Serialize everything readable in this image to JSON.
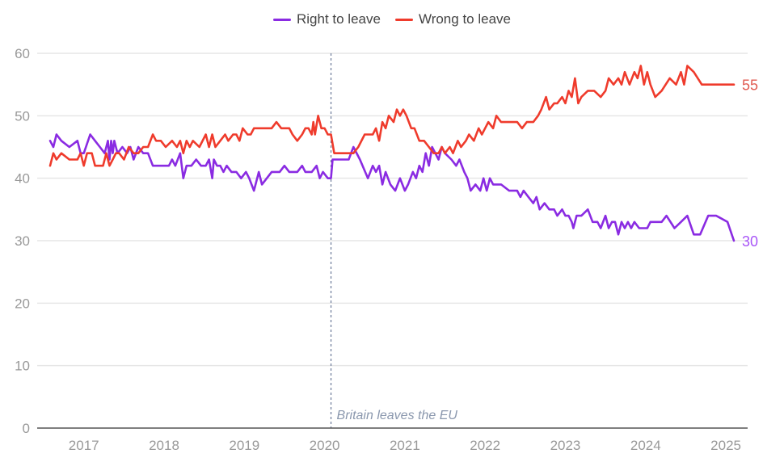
{
  "chart_data": {
    "type": "line",
    "title": "",
    "xlabel": "",
    "ylabel": "",
    "ylim": [
      0,
      60
    ],
    "xlim": [
      2016.58,
      2025.1
    ],
    "yticks": [
      0,
      10,
      20,
      30,
      40,
      50,
      60
    ],
    "xticks": [
      "2017",
      "2018",
      "2019",
      "2020",
      "2021",
      "2022",
      "2023",
      "2024",
      "2025"
    ],
    "xtick_values": [
      2017,
      2018,
      2019,
      2020,
      2021,
      2022,
      2023,
      2024,
      2025
    ],
    "grid": true,
    "legend": {
      "placement": "top-center",
      "entries": [
        "Right to leave",
        "Wrong to leave"
      ]
    },
    "annotation": {
      "label": "Britain leaves the EU",
      "x": 2020.08
    },
    "end_labels": {
      "Right to leave": "30",
      "Wrong to leave": "55"
    },
    "series": [
      {
        "name": "Right to leave",
        "color": "#8a2be2",
        "points": [
          [
            2016.58,
            46
          ],
          [
            2016.62,
            45
          ],
          [
            2016.66,
            47
          ],
          [
            2016.72,
            46
          ],
          [
            2016.82,
            45
          ],
          [
            2016.92,
            46
          ],
          [
            2016.96,
            44
          ],
          [
            2017.0,
            44
          ],
          [
            2017.08,
            47
          ],
          [
            2017.14,
            46
          ],
          [
            2017.2,
            45
          ],
          [
            2017.26,
            44
          ],
          [
            2017.3,
            46
          ],
          [
            2017.32,
            43
          ],
          [
            2017.34,
            46
          ],
          [
            2017.36,
            44
          ],
          [
            2017.38,
            46
          ],
          [
            2017.42,
            44
          ],
          [
            2017.48,
            45
          ],
          [
            2017.54,
            44
          ],
          [
            2017.58,
            45
          ],
          [
            2017.62,
            43
          ],
          [
            2017.68,
            45
          ],
          [
            2017.74,
            44
          ],
          [
            2017.8,
            44
          ],
          [
            2017.86,
            42
          ],
          [
            2017.96,
            42
          ],
          [
            2018.06,
            42
          ],
          [
            2018.1,
            43
          ],
          [
            2018.14,
            42
          ],
          [
            2018.2,
            44
          ],
          [
            2018.24,
            40
          ],
          [
            2018.28,
            42
          ],
          [
            2018.34,
            42
          ],
          [
            2018.4,
            43
          ],
          [
            2018.46,
            42
          ],
          [
            2018.52,
            42
          ],
          [
            2018.56,
            43
          ],
          [
            2018.6,
            40
          ],
          [
            2018.62,
            43
          ],
          [
            2018.66,
            42
          ],
          [
            2018.7,
            42
          ],
          [
            2018.74,
            41
          ],
          [
            2018.78,
            42
          ],
          [
            2018.84,
            41
          ],
          [
            2018.9,
            41
          ],
          [
            2018.96,
            40
          ],
          [
            2019.02,
            41
          ],
          [
            2019.06,
            40
          ],
          [
            2019.12,
            38
          ],
          [
            2019.18,
            41
          ],
          [
            2019.22,
            39
          ],
          [
            2019.28,
            40
          ],
          [
            2019.34,
            41
          ],
          [
            2019.44,
            41
          ],
          [
            2019.5,
            42
          ],
          [
            2019.56,
            41
          ],
          [
            2019.66,
            41
          ],
          [
            2019.72,
            42
          ],
          [
            2019.76,
            41
          ],
          [
            2019.84,
            41
          ],
          [
            2019.9,
            42
          ],
          [
            2019.94,
            40
          ],
          [
            2019.98,
            41
          ],
          [
            2020.04,
            40
          ],
          [
            2020.08,
            40
          ],
          [
            2020.1,
            43
          ],
          [
            2020.3,
            43
          ],
          [
            2020.36,
            45
          ],
          [
            2020.44,
            43
          ],
          [
            2020.54,
            40
          ],
          [
            2020.6,
            42
          ],
          [
            2020.64,
            41
          ],
          [
            2020.68,
            42
          ],
          [
            2020.72,
            39
          ],
          [
            2020.76,
            41
          ],
          [
            2020.82,
            39
          ],
          [
            2020.88,
            38
          ],
          [
            2020.94,
            40
          ],
          [
            2021.0,
            38
          ],
          [
            2021.04,
            39
          ],
          [
            2021.1,
            41
          ],
          [
            2021.14,
            40
          ],
          [
            2021.18,
            42
          ],
          [
            2021.22,
            41
          ],
          [
            2021.26,
            44
          ],
          [
            2021.3,
            42
          ],
          [
            2021.34,
            45
          ],
          [
            2021.38,
            44
          ],
          [
            2021.42,
            43
          ],
          [
            2021.46,
            45
          ],
          [
            2021.5,
            44
          ],
          [
            2021.58,
            43
          ],
          [
            2021.64,
            42
          ],
          [
            2021.68,
            43
          ],
          [
            2021.74,
            41
          ],
          [
            2021.78,
            40
          ],
          [
            2021.82,
            38
          ],
          [
            2021.88,
            39
          ],
          [
            2021.94,
            38
          ],
          [
            2021.98,
            40
          ],
          [
            2022.02,
            38
          ],
          [
            2022.06,
            40
          ],
          [
            2022.1,
            39
          ],
          [
            2022.2,
            39
          ],
          [
            2022.3,
            38
          ],
          [
            2022.4,
            38
          ],
          [
            2022.44,
            37
          ],
          [
            2022.48,
            38
          ],
          [
            2022.54,
            37
          ],
          [
            2022.6,
            36
          ],
          [
            2022.64,
            37
          ],
          [
            2022.68,
            35
          ],
          [
            2022.74,
            36
          ],
          [
            2022.8,
            35
          ],
          [
            2022.86,
            35
          ],
          [
            2022.9,
            34
          ],
          [
            2022.96,
            35
          ],
          [
            2023.0,
            34
          ],
          [
            2023.04,
            34
          ],
          [
            2023.08,
            33
          ],
          [
            2023.1,
            32
          ],
          [
            2023.14,
            34
          ],
          [
            2023.2,
            34
          ],
          [
            2023.28,
            35
          ],
          [
            2023.34,
            33
          ],
          [
            2023.4,
            33
          ],
          [
            2023.44,
            32
          ],
          [
            2023.5,
            34
          ],
          [
            2023.54,
            32
          ],
          [
            2023.58,
            33
          ],
          [
            2023.62,
            33
          ],
          [
            2023.66,
            31
          ],
          [
            2023.7,
            33
          ],
          [
            2023.74,
            32
          ],
          [
            2023.78,
            33
          ],
          [
            2023.82,
            32
          ],
          [
            2023.86,
            33
          ],
          [
            2023.92,
            32
          ],
          [
            2023.98,
            32
          ],
          [
            2024.02,
            32
          ],
          [
            2024.06,
            33
          ],
          [
            2024.12,
            33
          ],
          [
            2024.2,
            33
          ],
          [
            2024.26,
            34
          ],
          [
            2024.36,
            32
          ],
          [
            2024.44,
            33
          ],
          [
            2024.52,
            34
          ],
          [
            2024.6,
            31
          ],
          [
            2024.68,
            31
          ],
          [
            2024.78,
            34
          ],
          [
            2024.88,
            34
          ],
          [
            2025.02,
            33
          ],
          [
            2025.1,
            30
          ]
        ]
      },
      {
        "name": "Wrong to leave",
        "color": "#ef3b2c",
        "points": [
          [
            2016.58,
            42
          ],
          [
            2016.62,
            44
          ],
          [
            2016.66,
            43
          ],
          [
            2016.72,
            44
          ],
          [
            2016.82,
            43
          ],
          [
            2016.92,
            43
          ],
          [
            2016.96,
            44
          ],
          [
            2017.0,
            42
          ],
          [
            2017.04,
            44
          ],
          [
            2017.1,
            44
          ],
          [
            2017.14,
            42
          ],
          [
            2017.24,
            42
          ],
          [
            2017.28,
            44
          ],
          [
            2017.32,
            42
          ],
          [
            2017.36,
            43
          ],
          [
            2017.4,
            44
          ],
          [
            2017.44,
            44
          ],
          [
            2017.5,
            43
          ],
          [
            2017.56,
            45
          ],
          [
            2017.62,
            44
          ],
          [
            2017.68,
            44
          ],
          [
            2017.74,
            45
          ],
          [
            2017.8,
            45
          ],
          [
            2017.86,
            47
          ],
          [
            2017.9,
            46
          ],
          [
            2017.96,
            46
          ],
          [
            2018.02,
            45
          ],
          [
            2018.1,
            46
          ],
          [
            2018.16,
            45
          ],
          [
            2018.2,
            46
          ],
          [
            2018.24,
            44
          ],
          [
            2018.28,
            46
          ],
          [
            2018.32,
            45
          ],
          [
            2018.36,
            46
          ],
          [
            2018.44,
            45
          ],
          [
            2018.52,
            47
          ],
          [
            2018.56,
            45
          ],
          [
            2018.6,
            47
          ],
          [
            2018.64,
            45
          ],
          [
            2018.7,
            46
          ],
          [
            2018.76,
            47
          ],
          [
            2018.8,
            46
          ],
          [
            2018.86,
            47
          ],
          [
            2018.9,
            47
          ],
          [
            2018.94,
            46
          ],
          [
            2018.98,
            48
          ],
          [
            2019.04,
            47
          ],
          [
            2019.08,
            47
          ],
          [
            2019.12,
            48
          ],
          [
            2019.2,
            48
          ],
          [
            2019.26,
            48
          ],
          [
            2019.34,
            48
          ],
          [
            2019.4,
            49
          ],
          [
            2019.46,
            48
          ],
          [
            2019.56,
            48
          ],
          [
            2019.6,
            47
          ],
          [
            2019.66,
            46
          ],
          [
            2019.72,
            47
          ],
          [
            2019.76,
            48
          ],
          [
            2019.8,
            48
          ],
          [
            2019.84,
            47
          ],
          [
            2019.86,
            49
          ],
          [
            2019.88,
            47
          ],
          [
            2019.92,
            50
          ],
          [
            2019.96,
            48
          ],
          [
            2020.0,
            48
          ],
          [
            2020.04,
            47
          ],
          [
            2020.08,
            47
          ],
          [
            2020.12,
            44
          ],
          [
            2020.3,
            44
          ],
          [
            2020.36,
            44
          ],
          [
            2020.42,
            45
          ],
          [
            2020.5,
            47
          ],
          [
            2020.6,
            47
          ],
          [
            2020.64,
            48
          ],
          [
            2020.68,
            46
          ],
          [
            2020.72,
            49
          ],
          [
            2020.76,
            48
          ],
          [
            2020.8,
            50
          ],
          [
            2020.86,
            49
          ],
          [
            2020.9,
            51
          ],
          [
            2020.94,
            50
          ],
          [
            2020.98,
            51
          ],
          [
            2021.02,
            50
          ],
          [
            2021.08,
            48
          ],
          [
            2021.12,
            48
          ],
          [
            2021.18,
            46
          ],
          [
            2021.24,
            46
          ],
          [
            2021.3,
            45
          ],
          [
            2021.36,
            44
          ],
          [
            2021.42,
            44
          ],
          [
            2021.46,
            45
          ],
          [
            2021.5,
            44
          ],
          [
            2021.56,
            45
          ],
          [
            2021.6,
            44
          ],
          [
            2021.66,
            46
          ],
          [
            2021.7,
            45
          ],
          [
            2021.76,
            46
          ],
          [
            2021.8,
            47
          ],
          [
            2021.86,
            46
          ],
          [
            2021.92,
            48
          ],
          [
            2021.96,
            47
          ],
          [
            2022.0,
            48
          ],
          [
            2022.04,
            49
          ],
          [
            2022.1,
            48
          ],
          [
            2022.14,
            50
          ],
          [
            2022.2,
            49
          ],
          [
            2022.3,
            49
          ],
          [
            2022.4,
            49
          ],
          [
            2022.46,
            48
          ],
          [
            2022.52,
            49
          ],
          [
            2022.6,
            49
          ],
          [
            2022.66,
            50
          ],
          [
            2022.7,
            51
          ],
          [
            2022.76,
            53
          ],
          [
            2022.8,
            51
          ],
          [
            2022.86,
            52
          ],
          [
            2022.9,
            52
          ],
          [
            2022.96,
            53
          ],
          [
            2023.0,
            52
          ],
          [
            2023.04,
            54
          ],
          [
            2023.08,
            53
          ],
          [
            2023.12,
            56
          ],
          [
            2023.16,
            52
          ],
          [
            2023.2,
            53
          ],
          [
            2023.28,
            54
          ],
          [
            2023.36,
            54
          ],
          [
            2023.44,
            53
          ],
          [
            2023.5,
            54
          ],
          [
            2023.54,
            56
          ],
          [
            2023.6,
            55
          ],
          [
            2023.66,
            56
          ],
          [
            2023.7,
            55
          ],
          [
            2023.74,
            57
          ],
          [
            2023.8,
            55
          ],
          [
            2023.86,
            57
          ],
          [
            2023.9,
            56
          ],
          [
            2023.94,
            58
          ],
          [
            2023.98,
            55
          ],
          [
            2024.02,
            57
          ],
          [
            2024.06,
            55
          ],
          [
            2024.12,
            53
          ],
          [
            2024.2,
            54
          ],
          [
            2024.3,
            56
          ],
          [
            2024.38,
            55
          ],
          [
            2024.44,
            57
          ],
          [
            2024.48,
            55
          ],
          [
            2024.52,
            58
          ],
          [
            2024.6,
            57
          ],
          [
            2024.7,
            55
          ],
          [
            2024.8,
            55
          ],
          [
            2024.9,
            55
          ],
          [
            2025.1,
            55
          ]
        ]
      }
    ]
  },
  "styles": {
    "grid_color": "#e6e6e6",
    "axis_color": "#555555",
    "tick_label_color": "#999999",
    "annotation_color": "#8a97ad",
    "end_label_right_color": "#a855f7",
    "end_label_wrong_color": "#e05a50"
  }
}
